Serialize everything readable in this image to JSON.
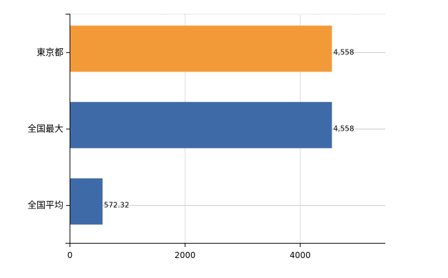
{
  "chart_data": {
    "type": "bar",
    "orientation": "horizontal",
    "categories": [
      "東京都",
      "全国最大",
      "全国平均"
    ],
    "values": [
      4558,
      4558,
      572.32
    ],
    "data_labels": [
      "4,558",
      "4,558",
      "572.32"
    ],
    "bar_colors": [
      "#f39a38",
      "#3e6aa8",
      "#3e6aa8"
    ],
    "title": "",
    "xlabel": "",
    "ylabel": "",
    "xlim": [
      0,
      5485
    ],
    "x_ticks": [
      0,
      2000,
      4000
    ],
    "x_tick_labels": [
      "0",
      "2000",
      "4000"
    ],
    "grid": true,
    "legend": "none"
  }
}
